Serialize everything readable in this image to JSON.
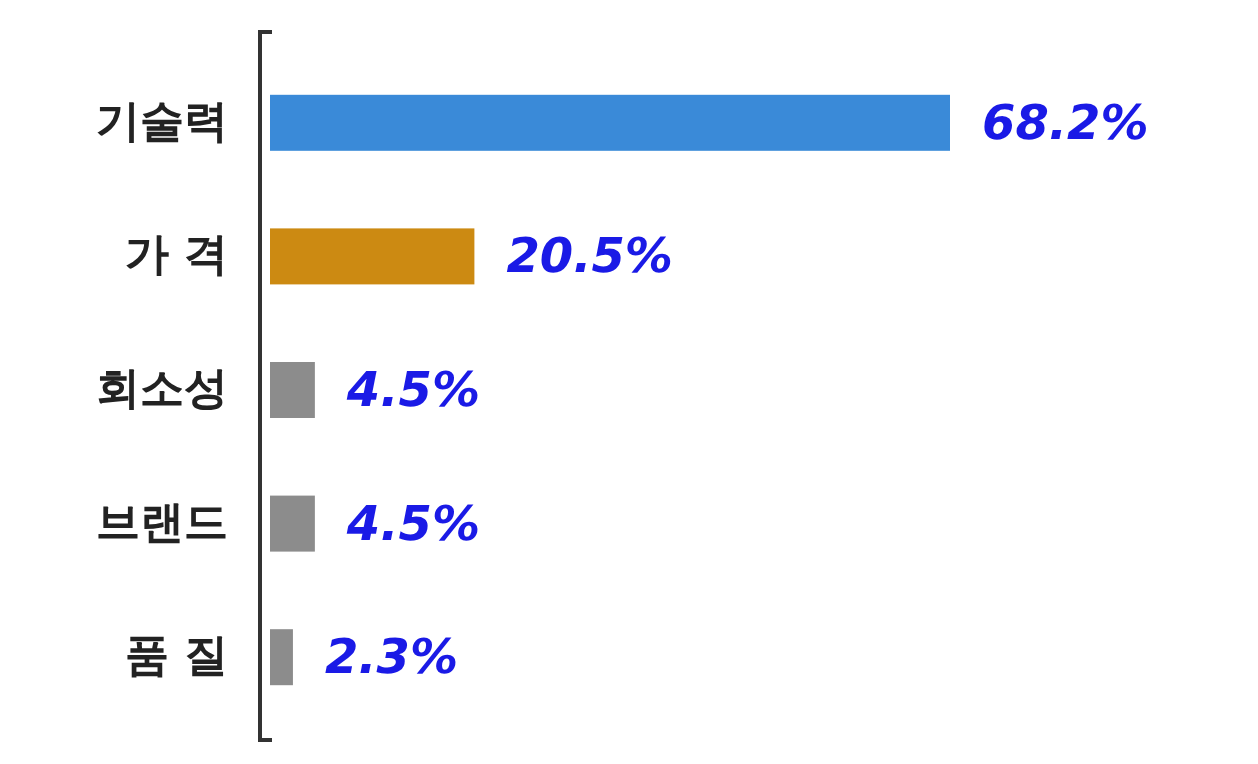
{
  "chart_data": {
    "type": "bar",
    "orientation": "horizontal",
    "categories": [
      "기술력",
      "가 격",
      "회소성",
      "브랜드",
      "품 질"
    ],
    "values": [
      68.2,
      20.5,
      4.5,
      4.5,
      2.3
    ],
    "colors": [
      "#3a8ad8",
      "#cc8a12",
      "#8c8c8c",
      "#8c8c8c",
      "#8c8c8c"
    ],
    "value_labels": [
      "68.2%",
      "20.5%",
      "4.5%",
      "4.5%",
      "2.3%"
    ]
  }
}
